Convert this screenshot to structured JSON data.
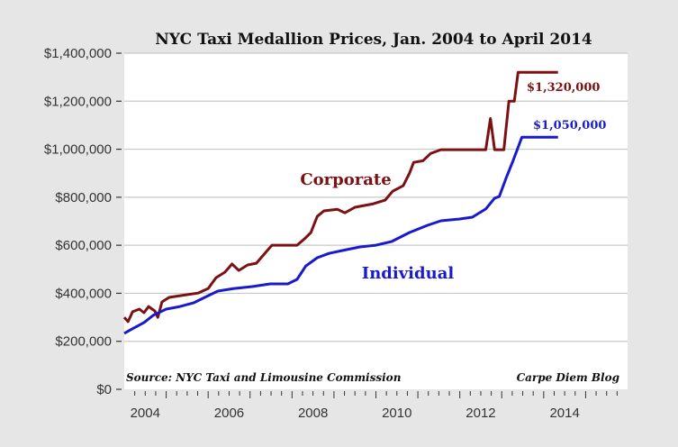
{
  "chart_data": {
    "type": "line",
    "title": "NYC Taxi Medallion Prices, Jan. 2004 to April 2014",
    "xlabel": "",
    "ylabel": "",
    "xlim": [
      2004,
      2016
    ],
    "ylim": [
      0,
      1400000
    ],
    "grid": true,
    "y_ticks": [
      {
        "value": 0,
        "label": "$0"
      },
      {
        "value": 200000,
        "label": "$200,000"
      },
      {
        "value": 400000,
        "label": "$400,000"
      },
      {
        "value": 600000,
        "label": "$600,000"
      },
      {
        "value": 800000,
        "label": "$800,000"
      },
      {
        "value": 1000000,
        "label": "$1,000,000"
      },
      {
        "value": 1200000,
        "label": "$1,200,000"
      },
      {
        "value": 1400000,
        "label": "$1,400,000"
      }
    ],
    "x_ticks": [
      {
        "value": 2004,
        "label": "2004"
      },
      {
        "value": 2006,
        "label": "2006"
      },
      {
        "value": 2008,
        "label": "2008"
      },
      {
        "value": 2010,
        "label": "2010"
      },
      {
        "value": 2012,
        "label": "2012"
      },
      {
        "value": 2014,
        "label": "2014"
      }
    ],
    "series": [
      {
        "name": "Corporate",
        "color": "#7b1113",
        "end_label": "$1,320,000",
        "x": [
          2004.0,
          2004.09,
          2004.2,
          2004.36,
          2004.47,
          2004.58,
          2004.73,
          2004.8,
          2004.9,
          2005.07,
          2005.33,
          2005.76,
          2006.0,
          2006.19,
          2006.4,
          2006.57,
          2006.73,
          2006.94,
          2007.15,
          2007.37,
          2007.52,
          2008.12,
          2008.3,
          2008.45,
          2008.6,
          2008.76,
          2009.08,
          2009.26,
          2009.5,
          2009.94,
          2010.22,
          2010.4,
          2010.65,
          2010.8,
          2010.9,
          2011.12,
          2011.3,
          2011.55,
          2012.62,
          2012.73,
          2012.83,
          2013.05,
          2013.17,
          2013.3,
          2013.39,
          2014.34
        ],
        "values": [
          300000,
          282000,
          323000,
          334000,
          319000,
          345000,
          326000,
          300000,
          364000,
          383000,
          390000,
          401000,
          420000,
          465000,
          488000,
          522000,
          495000,
          518000,
          525000,
          570000,
          600000,
          600000,
          627000,
          653000,
          720000,
          743000,
          750000,
          735000,
          758000,
          773000,
          788000,
          825000,
          848000,
          900000,
          945000,
          952000,
          982000,
          998000,
          998000,
          1128000,
          998000,
          998000,
          1200000,
          1200000,
          1320000,
          1320000
        ]
      },
      {
        "name": "Individual",
        "color": "#1a1acc",
        "end_label": "$1,050,000",
        "x": [
          2004.0,
          2004.15,
          2004.47,
          2004.69,
          2005.0,
          2005.33,
          2005.65,
          2006.0,
          2006.23,
          2006.62,
          2007.05,
          2007.48,
          2007.9,
          2008.12,
          2008.33,
          2008.6,
          2008.88,
          2009.2,
          2009.62,
          2010.0,
          2010.37,
          2010.8,
          2011.23,
          2011.55,
          2011.98,
          2012.3,
          2012.62,
          2012.83,
          2012.94,
          2013.1,
          2013.27,
          2013.48,
          2014.34
        ],
        "values": [
          233000,
          248000,
          278000,
          308000,
          334000,
          345000,
          360000,
          390000,
          409000,
          420000,
          428000,
          439000,
          439000,
          458000,
          514000,
          548000,
          566000,
          578000,
          593000,
          600000,
          615000,
          653000,
          683000,
          702000,
          709000,
          717000,
          751000,
          796000,
          803000,
          878000,
          952000,
          1050000,
          1050000
        ]
      }
    ],
    "annotations": {
      "source": "Source: NYC Taxi and Limousine Commission",
      "credit": "Carpe Diem Blog"
    }
  }
}
